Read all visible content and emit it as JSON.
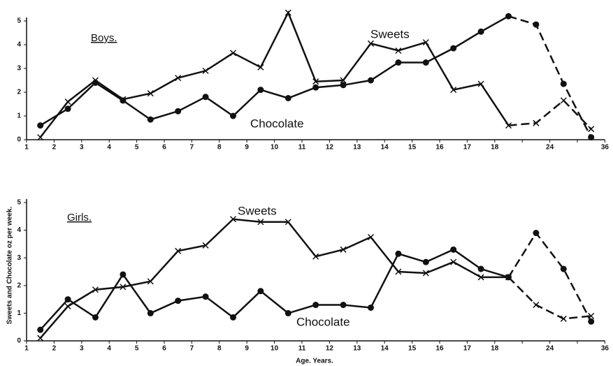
{
  "y_label": "Sweets and Chocolate oz per week.",
  "x_label": "Age. Years.",
  "chart_data": [
    {
      "type": "line",
      "label": "Boys.",
      "ylim": [
        0,
        5
      ],
      "yticks": [
        0,
        1,
        2,
        3,
        4,
        5
      ],
      "categories": [
        null,
        null,
        null,
        null,
        null,
        null,
        null,
        null,
        null,
        null,
        null,
        null,
        null,
        null,
        null,
        null,
        null,
        null,
        null,
        null,
        null
      ],
      "xtick_labels": [
        "1",
        "2",
        "3",
        "4",
        "5",
        "6",
        "7",
        "8",
        "9",
        "10",
        "11",
        "12",
        "13",
        "14",
        "15",
        "16",
        "17",
        "18",
        null,
        "24",
        null,
        "36"
      ],
      "series": [
        {
          "name": "Sweets",
          "marker": "x",
          "dashed_from": 17,
          "color": "#111",
          "values": [
            0.1,
            1.6,
            2.5,
            1.7,
            1.95,
            2.6,
            2.9,
            3.65,
            3.05,
            5.35,
            2.45,
            2.5,
            4.05,
            3.75,
            4.1,
            2.1,
            2.35,
            0.6,
            0.7,
            1.65,
            0.45
          ]
        },
        {
          "name": "Chocolate",
          "marker": "dot",
          "dashed_from": 17,
          "color": "#111",
          "values": [
            0.6,
            1.3,
            2.4,
            1.65,
            0.85,
            1.2,
            1.8,
            1.0,
            2.1,
            1.75,
            2.2,
            2.3,
            2.5,
            3.25,
            3.25,
            3.85,
            4.55,
            5.2,
            4.85,
            2.35,
            0.1
          ]
        }
      ]
    },
    {
      "type": "line",
      "label": "Girls.",
      "ylim": [
        0,
        5
      ],
      "yticks": [
        0,
        1,
        2,
        3,
        4,
        5
      ],
      "categories": [
        null,
        null,
        null,
        null,
        null,
        null,
        null,
        null,
        null,
        null,
        null,
        null,
        null,
        null,
        null,
        null,
        null,
        null,
        null,
        null,
        null
      ],
      "xtick_labels": [
        "1",
        "2",
        "3",
        "4",
        "5",
        "6",
        "7",
        "8",
        "9",
        "10",
        "11",
        "12",
        "13",
        "14",
        "15",
        "16",
        "17",
        "18",
        null,
        "24",
        null,
        "36"
      ],
      "series": [
        {
          "name": "Sweets",
          "marker": "x",
          "dashed_from": 17,
          "color": "#111",
          "values": [
            0.1,
            1.25,
            1.85,
            1.95,
            2.15,
            3.25,
            3.45,
            4.4,
            4.3,
            4.3,
            3.05,
            3.3,
            3.75,
            2.5,
            2.45,
            2.85,
            2.3,
            2.3,
            1.3,
            0.8,
            0.9
          ]
        },
        {
          "name": "Chocolate",
          "marker": "dot",
          "dashed_from": 17,
          "color": "#111",
          "values": [
            0.4,
            1.5,
            0.85,
            2.4,
            1.0,
            1.45,
            1.6,
            0.85,
            1.8,
            1.0,
            1.3,
            1.3,
            1.2,
            3.15,
            2.85,
            3.3,
            2.6,
            2.3,
            3.9,
            2.6,
            0.7
          ]
        }
      ]
    }
  ]
}
